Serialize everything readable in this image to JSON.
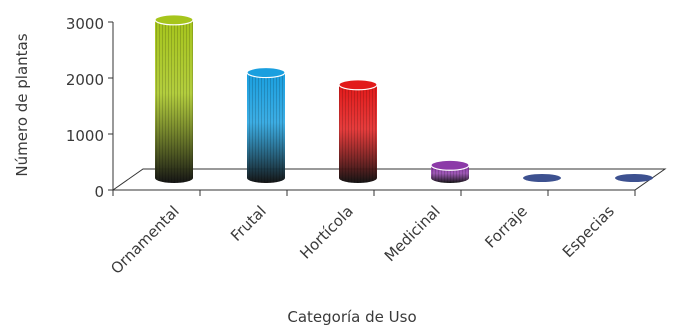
{
  "chart_data": {
    "type": "bar",
    "style": "3d-cylinder",
    "categories": [
      "Ornamental",
      "Frutal",
      "Hortícola",
      "Medicinal",
      "Forraje",
      "Especias"
    ],
    "values": [
      2850,
      1900,
      1680,
      230,
      0,
      0
    ],
    "xlabel": "Categoría de Uso",
    "ylabel": "Número de plantas",
    "ylim": [
      0,
      3000
    ],
    "yticks": [
      "0",
      "1000",
      "2000",
      "3000"
    ],
    "grid": false,
    "legend": "none",
    "colors": [
      "#a6c51c",
      "#1a9fdf",
      "#e21a1a",
      "#8c3aa8",
      "#3d5190",
      "#3d5190"
    ]
  }
}
